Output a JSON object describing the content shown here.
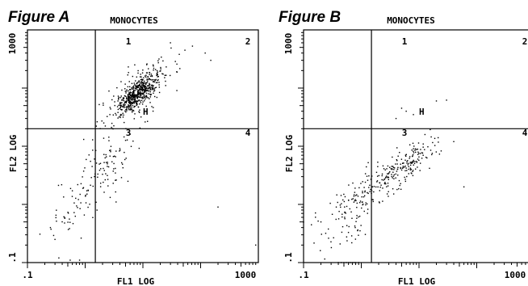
{
  "chart_data": [
    {
      "type": "scatter",
      "figure_label": "Figure A",
      "title": "MONOCYTES",
      "xlabel": "FL1 LOG",
      "ylabel": "FL2 LOG",
      "x_scale": "log",
      "y_scale": "log",
      "xlim": [
        0.1,
        1000
      ],
      "ylim": [
        0.1,
        1000
      ],
      "x_tick_labels": [
        ".1",
        "1000"
      ],
      "y_tick_labels": [
        ".1",
        "1000"
      ],
      "quadrant_labels": [
        "1",
        "2",
        "3",
        "4"
      ],
      "gate_marker": "H",
      "quadrant_divider": {
        "x": 1.5,
        "y": 20
      },
      "clusters": [
        {
          "cx": 8,
          "cy": 80,
          "sx": 0.18,
          "sy": 0.18,
          "n": 520
        },
        {
          "cx": 8,
          "cy": 80,
          "sx": 0.38,
          "sy": 0.35,
          "n": 120
        },
        {
          "cx": 2.5,
          "cy": 5,
          "sx": 0.33,
          "sy": 0.42,
          "n": 90
        },
        {
          "cx": 0.7,
          "cy": 1.0,
          "sx": 0.32,
          "sy": 0.38,
          "n": 55
        }
      ],
      "extra_points": [
        [
          120,
          400
        ],
        [
          150,
          300
        ],
        [
          30,
          600
        ],
        [
          0.35,
          0.12
        ],
        [
          0.55,
          0.11
        ],
        [
          0.8,
          0.11
        ],
        [
          0.3,
          0.25
        ],
        [
          0.25,
          0.4
        ],
        [
          900,
          0.2
        ],
        [
          200,
          0.9
        ]
      ]
    },
    {
      "type": "scatter",
      "figure_label": "Figure B",
      "title": "MONOCYTES",
      "xlabel": "FL1 LOG",
      "ylabel": "FL2 LOG",
      "x_scale": "log",
      "y_scale": "log",
      "xlim": [
        0.1,
        1000
      ],
      "ylim": [
        0.1,
        1000
      ],
      "x_tick_labels": [
        ".1",
        "1000"
      ],
      "y_tick_labels": [
        ".1",
        "1000"
      ],
      "quadrant_labels": [
        "1",
        "2",
        "3",
        "4"
      ],
      "gate_marker": "H",
      "quadrant_divider": {
        "x": 1.5,
        "y": 20
      },
      "clusters": [
        {
          "cx": 6,
          "cy": 5,
          "sx": 0.3,
          "sy": 0.22,
          "n": 170
        },
        {
          "cx": 1.0,
          "cy": 1.5,
          "sx": 0.35,
          "sy": 0.28,
          "n": 140
        },
        {
          "cx": 0.6,
          "cy": 0.3,
          "sx": 0.2,
          "sy": 0.15,
          "n": 25
        }
      ],
      "extra_points": [
        [
          4,
          30
        ],
        [
          6,
          40
        ],
        [
          8,
          35
        ],
        [
          20,
          60
        ],
        [
          30,
          62
        ],
        [
          5,
          45
        ],
        [
          0.4,
          0.1
        ],
        [
          0.5,
          0.1
        ],
        [
          0.6,
          0.1
        ],
        [
          0.7,
          0.1
        ],
        [
          0.8,
          0.1
        ],
        [
          0.9,
          0.1
        ],
        [
          0.45,
          0.1
        ],
        [
          0.55,
          0.1
        ],
        [
          0.65,
          0.1
        ],
        [
          0.75,
          0.1
        ],
        [
          0.2,
          0.5
        ],
        [
          60,
          2
        ],
        [
          40,
          12
        ]
      ]
    }
  ]
}
